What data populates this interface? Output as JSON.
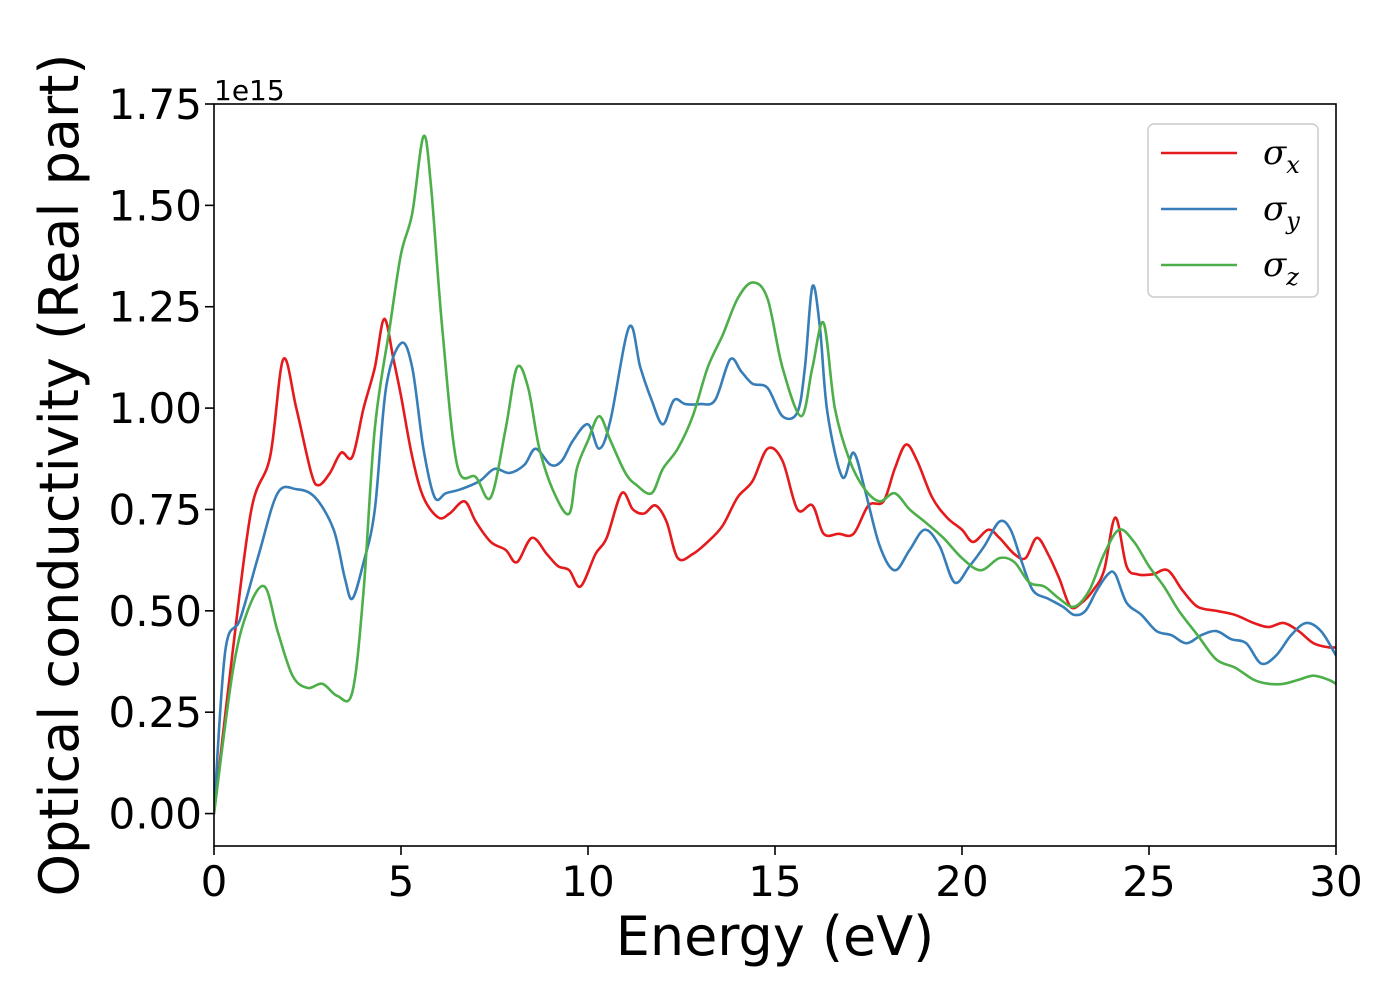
{
  "chart_data": {
    "type": "line",
    "xlabel": "Energy (eV)",
    "ylabel": "Optical conductivity (Real part)",
    "y_offset_label": "1e15",
    "xlim": [
      0,
      30
    ],
    "ylim": [
      -0.08,
      1.75
    ],
    "xticks": [
      0,
      5,
      10,
      15,
      20,
      25,
      30
    ],
    "xtick_labels": [
      "0",
      "5",
      "10",
      "15",
      "20",
      "25",
      "30"
    ],
    "yticks": [
      0.0,
      0.25,
      0.5,
      0.75,
      1.0,
      1.25,
      1.5,
      1.75
    ],
    "ytick_labels": [
      "0.00",
      "0.25",
      "0.50",
      "0.75",
      "1.00",
      "1.25",
      "1.50",
      "1.75"
    ],
    "grid": false,
    "legend_position": "top-right",
    "series": [
      {
        "name": "σ",
        "subscript": "x",
        "color": "#e41a1c",
        "x": [
          0,
          0.5,
          1,
          1.5,
          1.85,
          2.2,
          2.6,
          2.8,
          3.1,
          3.4,
          3.7,
          4,
          4.3,
          4.55,
          4.8,
          5,
          5.3,
          5.6,
          6,
          6.3,
          6.7,
          7,
          7.4,
          7.8,
          8.1,
          8.5,
          8.9,
          9.2,
          9.5,
          9.8,
          10.2,
          10.5,
          10.9,
          11.2,
          11.5,
          11.8,
          12.1,
          12.4,
          12.8,
          13.2,
          13.6,
          14,
          14.4,
          14.8,
          15.2,
          15.6,
          16,
          16.3,
          16.7,
          17.1,
          17.5,
          17.9,
          18.2,
          18.5,
          18.8,
          19.2,
          19.6,
          20,
          20.3,
          20.7,
          21,
          21.4,
          21.7,
          22,
          22.3,
          22.6,
          22.9,
          23.2,
          23.5,
          23.8,
          24.1,
          24.4,
          24.7,
          25.1,
          25.5,
          25.9,
          26.3,
          26.8,
          27.3,
          27.8,
          28.2,
          28.6,
          29,
          29.4,
          29.8,
          30
        ],
        "y": [
          0,
          0.4,
          0.75,
          0.88,
          1.12,
          1.0,
          0.84,
          0.81,
          0.84,
          0.89,
          0.88,
          1.0,
          1.1,
          1.22,
          1.12,
          1.03,
          0.88,
          0.78,
          0.73,
          0.74,
          0.77,
          0.72,
          0.67,
          0.65,
          0.62,
          0.68,
          0.64,
          0.61,
          0.6,
          0.56,
          0.64,
          0.68,
          0.79,
          0.75,
          0.74,
          0.76,
          0.72,
          0.63,
          0.64,
          0.67,
          0.71,
          0.78,
          0.82,
          0.9,
          0.87,
          0.75,
          0.76,
          0.69,
          0.69,
          0.69,
          0.76,
          0.77,
          0.85,
          0.91,
          0.87,
          0.78,
          0.73,
          0.7,
          0.67,
          0.7,
          0.68,
          0.64,
          0.63,
          0.68,
          0.64,
          0.58,
          0.51,
          0.52,
          0.55,
          0.6,
          0.73,
          0.61,
          0.59,
          0.59,
          0.6,
          0.55,
          0.51,
          0.5,
          0.49,
          0.47,
          0.46,
          0.47,
          0.45,
          0.42,
          0.41,
          0.41
        ]
      },
      {
        "name": "σ",
        "subscript": "y",
        "color": "#377eb8",
        "x": [
          0,
          0.3,
          0.7,
          1.2,
          1.7,
          2.2,
          2.7,
          3.2,
          3.5,
          3.7,
          4,
          4.3,
          4.6,
          5,
          5.3,
          5.6,
          5.9,
          6.2,
          6.6,
          7.1,
          7.5,
          7.9,
          8.3,
          8.6,
          9,
          9.3,
          9.6,
          10,
          10.3,
          10.6,
          11.1,
          11.4,
          11.7,
          12,
          12.3,
          12.6,
          13,
          13.4,
          13.8,
          14.1,
          14.4,
          14.8,
          15.2,
          15.6,
          15.8,
          16,
          16.2,
          16.4,
          16.8,
          17.1,
          17.4,
          17.8,
          18.2,
          18.6,
          19,
          19.4,
          19.8,
          20.2,
          20.6,
          21,
          21.3,
          21.6,
          21.9,
          22.3,
          22.7,
          23,
          23.3,
          23.6,
          23.9,
          24.1,
          24.4,
          24.8,
          25.2,
          25.6,
          26,
          26.4,
          26.8,
          27.2,
          27.6,
          28,
          28.4,
          28.8,
          29.2,
          29.6,
          30
        ],
        "y": [
          0,
          0.4,
          0.48,
          0.64,
          0.79,
          0.8,
          0.78,
          0.7,
          0.58,
          0.53,
          0.62,
          0.75,
          1.05,
          1.16,
          1.1,
          0.9,
          0.78,
          0.79,
          0.8,
          0.82,
          0.85,
          0.84,
          0.86,
          0.9,
          0.86,
          0.87,
          0.92,
          0.96,
          0.9,
          0.97,
          1.2,
          1.1,
          1.02,
          0.96,
          1.02,
          1.01,
          1.01,
          1.02,
          1.12,
          1.09,
          1.06,
          1.05,
          0.98,
          0.99,
          1.1,
          1.3,
          1.2,
          0.99,
          0.83,
          0.89,
          0.8,
          0.66,
          0.6,
          0.65,
          0.7,
          0.66,
          0.57,
          0.61,
          0.66,
          0.72,
          0.7,
          0.62,
          0.55,
          0.53,
          0.51,
          0.49,
          0.5,
          0.55,
          0.59,
          0.59,
          0.52,
          0.49,
          0.45,
          0.44,
          0.42,
          0.44,
          0.45,
          0.43,
          0.42,
          0.37,
          0.39,
          0.44,
          0.47,
          0.45,
          0.39
        ]
      },
      {
        "name": "σ",
        "subscript": "z",
        "color": "#4daf4a",
        "x": [
          0,
          0.5,
          0.9,
          1.35,
          1.7,
          2.1,
          2.5,
          2.9,
          3.3,
          3.7,
          4,
          4.3,
          4.7,
          5.0,
          5.3,
          5.6,
          5.8,
          6.1,
          6.5,
          7,
          7.4,
          7.8,
          8.1,
          8.4,
          8.7,
          9.1,
          9.5,
          9.7,
          10,
          10.3,
          10.6,
          11,
          11.3,
          11.7,
          12,
          12.4,
          12.8,
          13.2,
          13.6,
          14,
          14.4,
          14.8,
          15.2,
          15.7,
          16.0,
          16.3,
          16.6,
          17,
          17.4,
          17.8,
          18.2,
          18.6,
          19,
          19.5,
          20,
          20.5,
          21,
          21.4,
          21.8,
          22.2,
          22.6,
          23,
          23.4,
          23.8,
          24.2,
          24.6,
          25,
          25.4,
          25.8,
          26.3,
          26.8,
          27.3,
          27.8,
          28.2,
          28.6,
          29,
          29.4,
          29.8,
          30
        ],
        "y": [
          0,
          0.35,
          0.5,
          0.56,
          0.45,
          0.34,
          0.31,
          0.32,
          0.29,
          0.3,
          0.55,
          0.95,
          1.2,
          1.38,
          1.48,
          1.67,
          1.55,
          1.2,
          0.86,
          0.83,
          0.78,
          0.95,
          1.1,
          1.05,
          0.9,
          0.79,
          0.74,
          0.85,
          0.92,
          0.98,
          0.92,
          0.84,
          0.81,
          0.79,
          0.85,
          0.9,
          0.98,
          1.1,
          1.18,
          1.27,
          1.31,
          1.27,
          1.1,
          0.98,
          1.1,
          1.21,
          1.0,
          0.87,
          0.8,
          0.77,
          0.79,
          0.75,
          0.72,
          0.68,
          0.63,
          0.6,
          0.63,
          0.62,
          0.57,
          0.56,
          0.53,
          0.51,
          0.55,
          0.64,
          0.7,
          0.67,
          0.61,
          0.56,
          0.5,
          0.44,
          0.38,
          0.36,
          0.33,
          0.32,
          0.32,
          0.33,
          0.34,
          0.33,
          0.32
        ]
      }
    ]
  }
}
